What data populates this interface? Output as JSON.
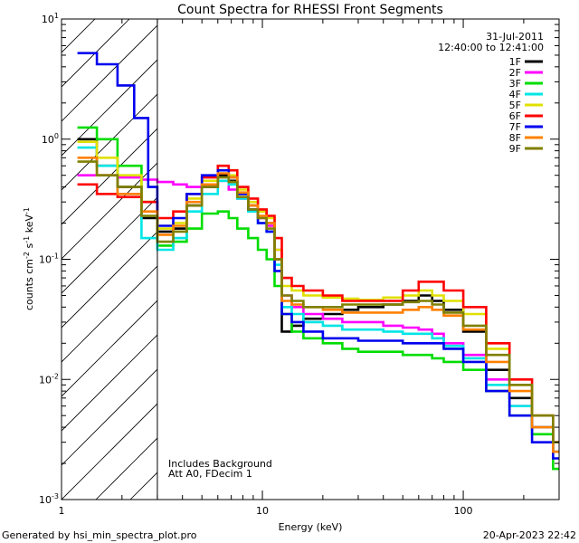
{
  "chart_data": {
    "type": "line",
    "title": "Count Spectra for RHESSI Front Segments",
    "xlabel": "Energy (keV)",
    "ylabel_parts": [
      "counts cm",
      "-2",
      " s",
      "-1",
      " keV",
      "-1"
    ],
    "xscale": "log",
    "yscale": "log",
    "xlim": [
      1,
      300
    ],
    "ylim": [
      0.001,
      10
    ],
    "x_ticks": [
      {
        "value": 1,
        "label": "1"
      },
      {
        "value": 10,
        "label": "10"
      },
      {
        "value": 100,
        "label": "100"
      }
    ],
    "y_ticks": [
      {
        "value": 0.001,
        "base": "10",
        "exp": "-3"
      },
      {
        "value": 0.01,
        "base": "10",
        "exp": "-2"
      },
      {
        "value": 0.1,
        "base": "10",
        "exp": "-1"
      },
      {
        "value": 1,
        "base": "10",
        "exp": "0"
      },
      {
        "value": 10,
        "base": "10",
        "exp": "1"
      }
    ],
    "date": "31-Jul-2011",
    "time_range": "12:40:00 to 12:41:00",
    "annotation_lines": [
      "Includes Background",
      "Att A0, FDecim 1"
    ],
    "excluded_region_xmax": 3,
    "series": [
      {
        "name": "1F",
        "color": "#000000",
        "points": [
          [
            1.2,
            1.0
          ],
          [
            1.5,
            0.6
          ],
          [
            1.9,
            0.4
          ],
          [
            2.5,
            0.22
          ],
          [
            3,
            0.17
          ],
          [
            3.6,
            0.18
          ],
          [
            4.2,
            0.28
          ],
          [
            5,
            0.4
          ],
          [
            6,
            0.5
          ],
          [
            6.8,
            0.45
          ],
          [
            7.5,
            0.35
          ],
          [
            8.5,
            0.28
          ],
          [
            9.5,
            0.25
          ],
          [
            10.5,
            0.2
          ],
          [
            11.5,
            0.1
          ],
          [
            12.5,
            0.025
          ],
          [
            14,
            0.028
          ],
          [
            16,
            0.032
          ],
          [
            20,
            0.035
          ],
          [
            25,
            0.038
          ],
          [
            30,
            0.04
          ],
          [
            40,
            0.042
          ],
          [
            50,
            0.045
          ],
          [
            60,
            0.05
          ],
          [
            70,
            0.045
          ],
          [
            80,
            0.038
          ],
          [
            100,
            0.025
          ],
          [
            130,
            0.012
          ],
          [
            170,
            0.007
          ],
          [
            220,
            0.004
          ],
          [
            280,
            0.0025
          ]
        ]
      },
      {
        "name": "2F",
        "color": "#ff00ff",
        "points": [
          [
            1.2,
            0.5
          ],
          [
            1.5,
            0.5
          ],
          [
            1.9,
            0.48
          ],
          [
            2.5,
            0.46
          ],
          [
            3,
            0.44
          ],
          [
            3.6,
            0.42
          ],
          [
            4.2,
            0.4
          ],
          [
            5,
            0.42
          ],
          [
            6,
            0.45
          ],
          [
            6.8,
            0.38
          ],
          [
            7.5,
            0.32
          ],
          [
            8.5,
            0.26
          ],
          [
            9.5,
            0.22
          ],
          [
            10.5,
            0.19
          ],
          [
            11.5,
            0.12
          ],
          [
            12.5,
            0.05
          ],
          [
            14,
            0.04
          ],
          [
            16,
            0.035
          ],
          [
            20,
            0.032
          ],
          [
            25,
            0.03
          ],
          [
            30,
            0.03
          ],
          [
            40,
            0.028
          ],
          [
            50,
            0.027
          ],
          [
            60,
            0.026
          ],
          [
            70,
            0.024
          ],
          [
            80,
            0.02
          ],
          [
            100,
            0.016
          ],
          [
            130,
            0.01
          ],
          [
            170,
            0.006
          ],
          [
            220,
            0.004
          ],
          [
            280,
            0.003
          ]
        ]
      },
      {
        "name": "3F",
        "color": "#00dd00",
        "points": [
          [
            1.2,
            1.25
          ],
          [
            1.5,
            1.0
          ],
          [
            1.9,
            0.6
          ],
          [
            2.5,
            0.3
          ],
          [
            3,
            0.13
          ],
          [
            3.6,
            0.14
          ],
          [
            4.2,
            0.18
          ],
          [
            5,
            0.24
          ],
          [
            6,
            0.25
          ],
          [
            6.8,
            0.22
          ],
          [
            7.5,
            0.18
          ],
          [
            8.5,
            0.15
          ],
          [
            9.5,
            0.12
          ],
          [
            10.5,
            0.1
          ],
          [
            11.5,
            0.06
          ],
          [
            12.5,
            0.035
          ],
          [
            14,
            0.025
          ],
          [
            16,
            0.022
          ],
          [
            20,
            0.02
          ],
          [
            25,
            0.018
          ],
          [
            30,
            0.017
          ],
          [
            40,
            0.017
          ],
          [
            50,
            0.016
          ],
          [
            60,
            0.016
          ],
          [
            70,
            0.015
          ],
          [
            80,
            0.014
          ],
          [
            100,
            0.012
          ],
          [
            130,
            0.008
          ],
          [
            170,
            0.005
          ],
          [
            220,
            0.0035
          ],
          [
            280,
            0.0018
          ]
        ]
      },
      {
        "name": "4F",
        "color": "#00e5e5",
        "points": [
          [
            1.2,
            0.85
          ],
          [
            1.5,
            0.6
          ],
          [
            1.9,
            0.35
          ],
          [
            2.5,
            0.15
          ],
          [
            3,
            0.12
          ],
          [
            3.6,
            0.15
          ],
          [
            4.2,
            0.25
          ],
          [
            5,
            0.35
          ],
          [
            6,
            0.45
          ],
          [
            6.8,
            0.42
          ],
          [
            7.5,
            0.32
          ],
          [
            8.5,
            0.25
          ],
          [
            9.5,
            0.2
          ],
          [
            10.5,
            0.17
          ],
          [
            11.5,
            0.09
          ],
          [
            12.5,
            0.04
          ],
          [
            14,
            0.035
          ],
          [
            16,
            0.03
          ],
          [
            20,
            0.028
          ],
          [
            25,
            0.026
          ],
          [
            30,
            0.026
          ],
          [
            40,
            0.025
          ],
          [
            50,
            0.024
          ],
          [
            60,
            0.024
          ],
          [
            70,
            0.022
          ],
          [
            80,
            0.019
          ],
          [
            100,
            0.015
          ],
          [
            130,
            0.009
          ],
          [
            170,
            0.006
          ],
          [
            220,
            0.004
          ],
          [
            280,
            0.0025
          ]
        ]
      },
      {
        "name": "5F",
        "color": "#e0e000",
        "points": [
          [
            1.2,
            0.95
          ],
          [
            1.5,
            0.7
          ],
          [
            1.9,
            0.5
          ],
          [
            2.5,
            0.3
          ],
          [
            3,
            0.18
          ],
          [
            3.6,
            0.2
          ],
          [
            4.2,
            0.32
          ],
          [
            5,
            0.45
          ],
          [
            6,
            0.55
          ],
          [
            6.8,
            0.5
          ],
          [
            7.5,
            0.38
          ],
          [
            8.5,
            0.3
          ],
          [
            9.5,
            0.25
          ],
          [
            10.5,
            0.22
          ],
          [
            11.5,
            0.12
          ],
          [
            12.5,
            0.06
          ],
          [
            14,
            0.055
          ],
          [
            16,
            0.05
          ],
          [
            20,
            0.048
          ],
          [
            25,
            0.047
          ],
          [
            30,
            0.046
          ],
          [
            40,
            0.048
          ],
          [
            50,
            0.05
          ],
          [
            60,
            0.055
          ],
          [
            70,
            0.05
          ],
          [
            80,
            0.045
          ],
          [
            100,
            0.035
          ],
          [
            130,
            0.018
          ],
          [
            170,
            0.009
          ],
          [
            220,
            0.005
          ],
          [
            280,
            0.003
          ]
        ]
      },
      {
        "name": "6F",
        "color": "#ff0000",
        "points": [
          [
            1.2,
            0.42
          ],
          [
            1.5,
            0.35
          ],
          [
            1.9,
            0.33
          ],
          [
            2.5,
            0.3
          ],
          [
            3,
            0.22
          ],
          [
            3.6,
            0.25
          ],
          [
            4.2,
            0.35
          ],
          [
            5,
            0.48
          ],
          [
            6,
            0.6
          ],
          [
            6.8,
            0.55
          ],
          [
            7.5,
            0.4
          ],
          [
            8.5,
            0.32
          ],
          [
            9.5,
            0.26
          ],
          [
            10.5,
            0.23
          ],
          [
            11.5,
            0.15
          ],
          [
            12.5,
            0.07
          ],
          [
            14,
            0.06
          ],
          [
            16,
            0.055
          ],
          [
            20,
            0.05
          ],
          [
            25,
            0.045
          ],
          [
            30,
            0.045
          ],
          [
            40,
            0.045
          ],
          [
            50,
            0.055
          ],
          [
            60,
            0.065
          ],
          [
            70,
            0.065
          ],
          [
            80,
            0.055
          ],
          [
            100,
            0.04
          ],
          [
            130,
            0.02
          ],
          [
            170,
            0.01
          ],
          [
            220,
            0.005
          ],
          [
            280,
            0.003
          ]
        ]
      },
      {
        "name": "7F",
        "color": "#0000ee",
        "points": [
          [
            1.2,
            5.2
          ],
          [
            1.5,
            4.2
          ],
          [
            1.9,
            2.8
          ],
          [
            2.3,
            1.5
          ],
          [
            2.7,
            0.4
          ],
          [
            3,
            0.19
          ],
          [
            3.6,
            0.22
          ],
          [
            4.2,
            0.35
          ],
          [
            5,
            0.5
          ],
          [
            6,
            0.55
          ],
          [
            6.8,
            0.48
          ],
          [
            7.5,
            0.35
          ],
          [
            8.5,
            0.26
          ],
          [
            9.5,
            0.2
          ],
          [
            10.5,
            0.17
          ],
          [
            11.5,
            0.08
          ],
          [
            12.5,
            0.035
          ],
          [
            14,
            0.03
          ],
          [
            16,
            0.025
          ],
          [
            20,
            0.022
          ],
          [
            25,
            0.022
          ],
          [
            30,
            0.021
          ],
          [
            40,
            0.021
          ],
          [
            50,
            0.02
          ],
          [
            60,
            0.02
          ],
          [
            70,
            0.02
          ],
          [
            80,
            0.018
          ],
          [
            100,
            0.014
          ],
          [
            130,
            0.008
          ],
          [
            170,
            0.005
          ],
          [
            220,
            0.003
          ],
          [
            280,
            0.0022
          ]
        ]
      },
      {
        "name": "8F",
        "color": "#ff8000",
        "points": [
          [
            1.2,
            0.7
          ],
          [
            1.5,
            0.5
          ],
          [
            1.9,
            0.35
          ],
          [
            2.5,
            0.25
          ],
          [
            3,
            0.16
          ],
          [
            3.6,
            0.19
          ],
          [
            4.2,
            0.3
          ],
          [
            5,
            0.42
          ],
          [
            6,
            0.52
          ],
          [
            6.8,
            0.48
          ],
          [
            7.5,
            0.36
          ],
          [
            8.5,
            0.28
          ],
          [
            9.5,
            0.23
          ],
          [
            10.5,
            0.2
          ],
          [
            11.5,
            0.1
          ],
          [
            12.5,
            0.045
          ],
          [
            14,
            0.042
          ],
          [
            16,
            0.04
          ],
          [
            20,
            0.038
          ],
          [
            25,
            0.036
          ],
          [
            30,
            0.036
          ],
          [
            40,
            0.036
          ],
          [
            50,
            0.038
          ],
          [
            60,
            0.04
          ],
          [
            70,
            0.038
          ],
          [
            80,
            0.034
          ],
          [
            100,
            0.026
          ],
          [
            130,
            0.014
          ],
          [
            170,
            0.008
          ],
          [
            220,
            0.004
          ],
          [
            280,
            0.0025
          ]
        ]
      },
      {
        "name": "9F",
        "color": "#808000",
        "points": [
          [
            1.2,
            0.65
          ],
          [
            1.5,
            0.5
          ],
          [
            1.9,
            0.4
          ],
          [
            2.5,
            0.23
          ],
          [
            3,
            0.14
          ],
          [
            3.6,
            0.17
          ],
          [
            4.2,
            0.28
          ],
          [
            5,
            0.4
          ],
          [
            6,
            0.48
          ],
          [
            6.8,
            0.44
          ],
          [
            7.5,
            0.33
          ],
          [
            8.5,
            0.26
          ],
          [
            9.5,
            0.22
          ],
          [
            10.5,
            0.18
          ],
          [
            11.5,
            0.1
          ],
          [
            12.5,
            0.05
          ],
          [
            14,
            0.045
          ],
          [
            16,
            0.04
          ],
          [
            20,
            0.04
          ],
          [
            25,
            0.042
          ],
          [
            30,
            0.042
          ],
          [
            40,
            0.042
          ],
          [
            50,
            0.044
          ],
          [
            60,
            0.045
          ],
          [
            70,
            0.042
          ],
          [
            80,
            0.036
          ],
          [
            100,
            0.028
          ],
          [
            130,
            0.016
          ],
          [
            170,
            0.009
          ],
          [
            220,
            0.005
          ],
          [
            280,
            0.003
          ]
        ]
      }
    ]
  },
  "footer": {
    "generator": "Generated by hsi_min_spectra_plot.pro",
    "timestamp": "20-Apr-2023 22:42"
  }
}
